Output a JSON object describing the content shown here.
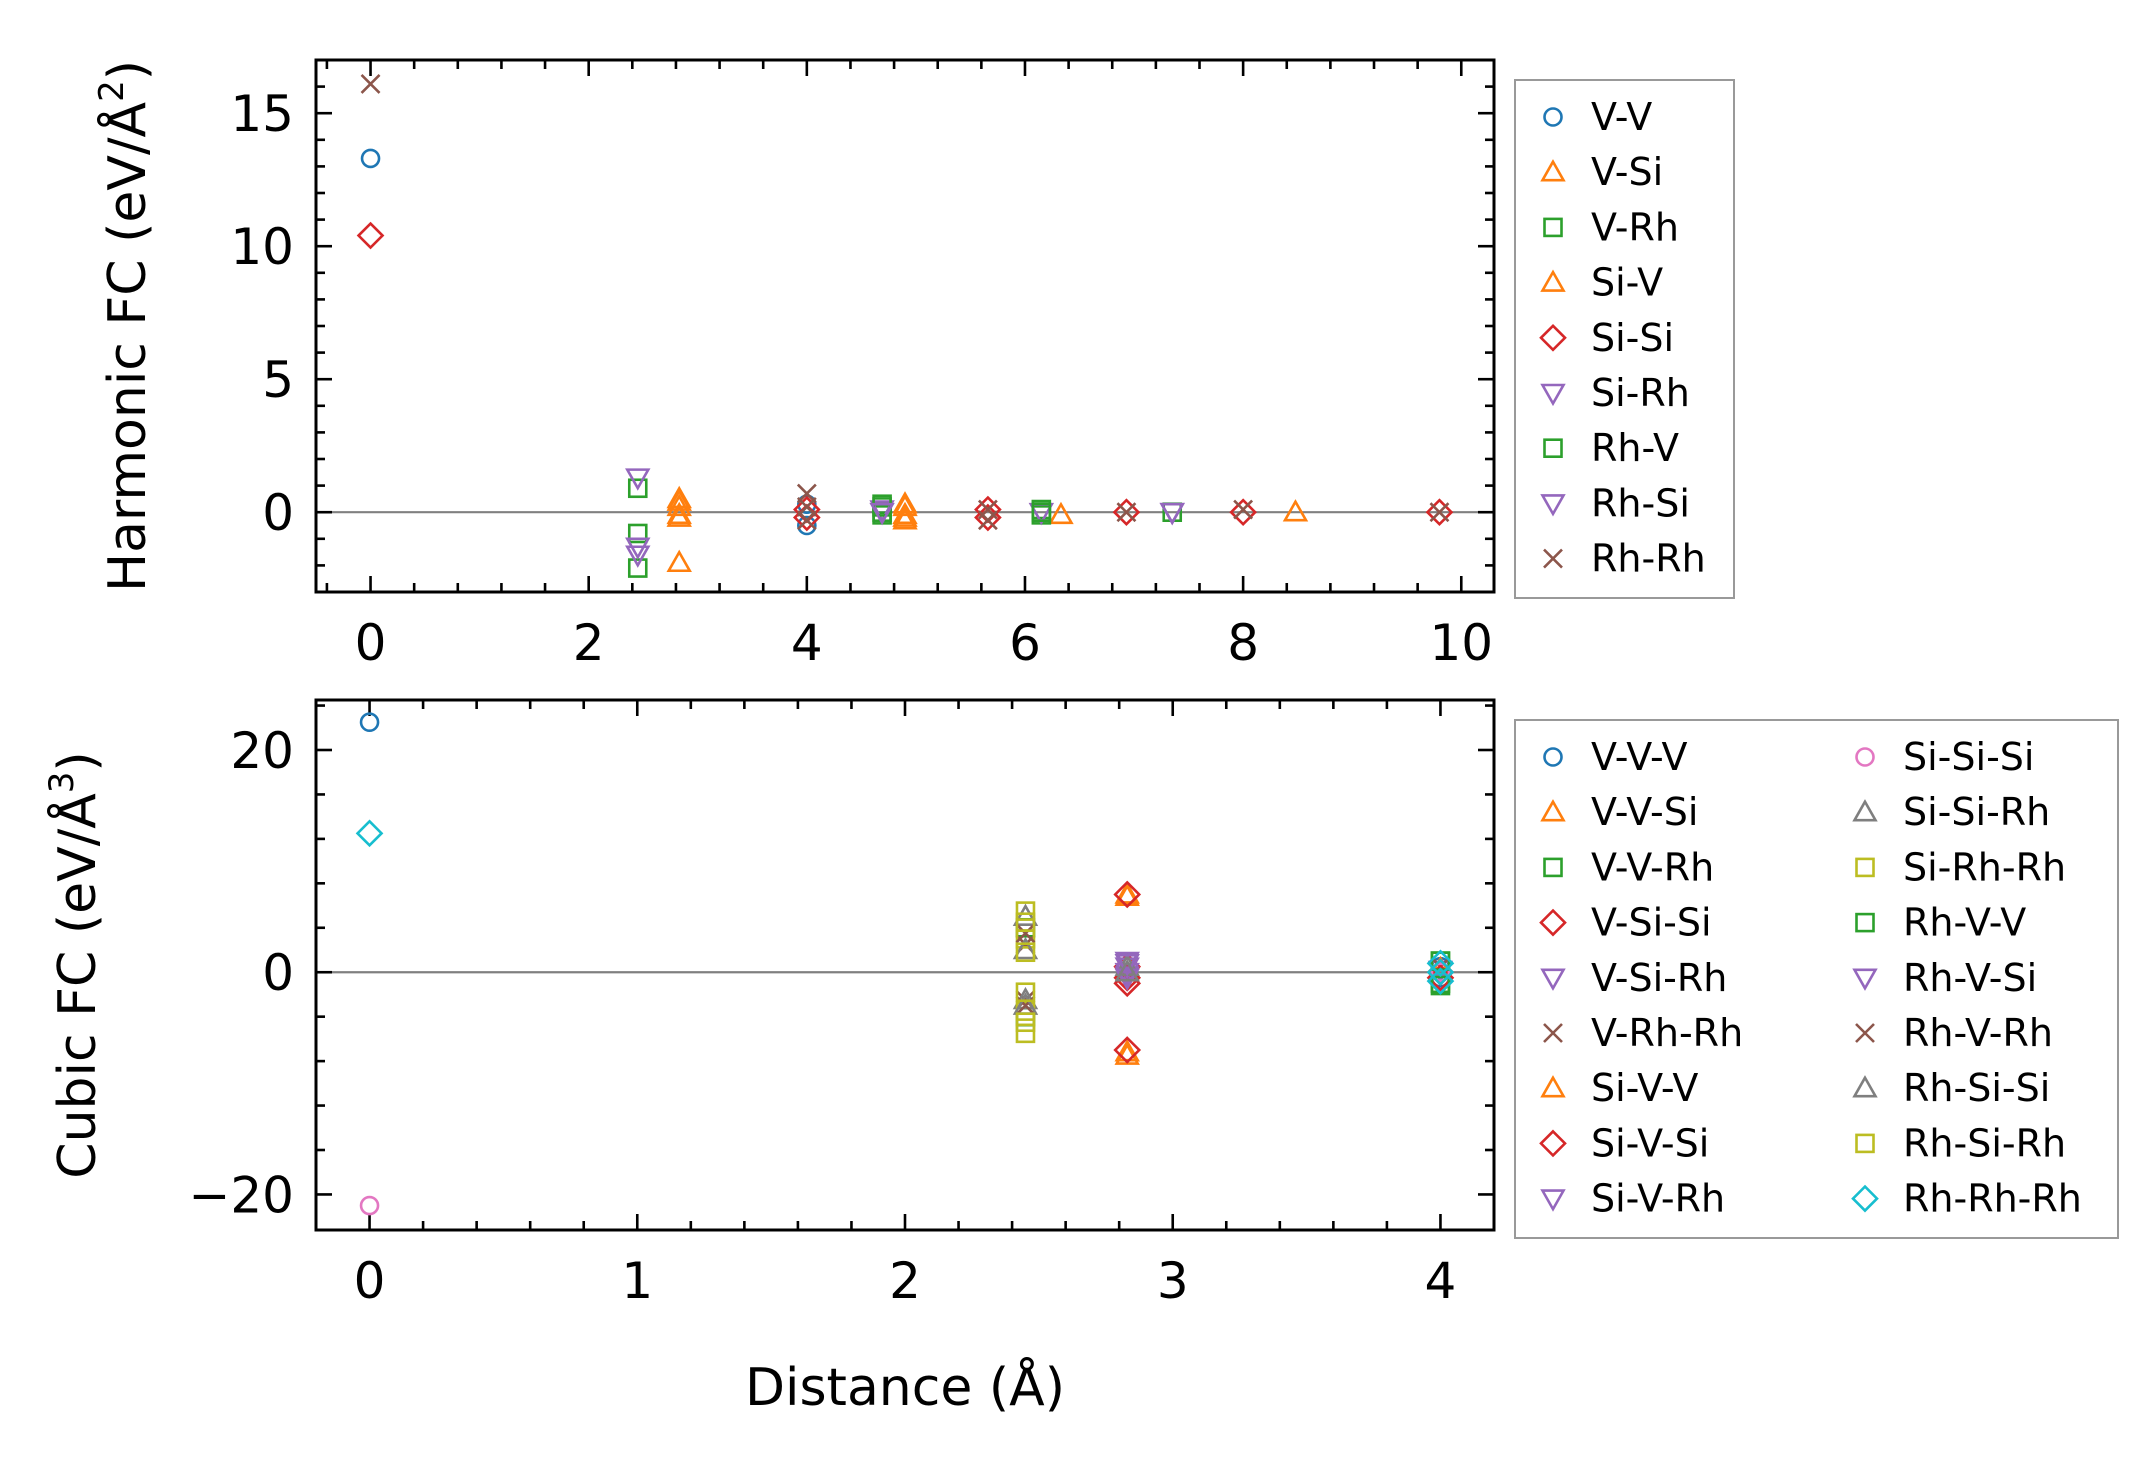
{
  "chart_data": [
    {
      "type": "scatter",
      "ylabel_base": "Harmonic FC (eV/Å",
      "ylabel_sup": "2",
      "ylabel_close": ")",
      "xlim": [
        -0.5,
        10.3
      ],
      "ylim": [
        -3,
        17
      ],
      "xticks": [
        0,
        2,
        4,
        6,
        8,
        10
      ],
      "yticks": [
        0,
        5,
        10,
        15
      ],
      "zero_line": true,
      "legend": {
        "placement": "outside-right",
        "columns": 1
      },
      "series": [
        {
          "name": "V-V",
          "marker": "circle",
          "color": "#1f77b4",
          "points": [
            [
              0,
              13.3
            ],
            [
              4.0,
              -0.5
            ],
            [
              4.0,
              0.3
            ]
          ]
        },
        {
          "name": "V-Si",
          "marker": "triangle-up",
          "color": "#ff7f0e",
          "points": [
            [
              2.83,
              0.5
            ],
            [
              2.83,
              0.2
            ],
            [
              2.83,
              -0.2
            ],
            [
              2.83,
              -1.9
            ],
            [
              4.9,
              0.3
            ],
            [
              4.9,
              -0.1
            ],
            [
              4.9,
              -0.3
            ],
            [
              6.33,
              -0.1
            ],
            [
              8.48,
              0.0
            ]
          ]
        },
        {
          "name": "V-Rh",
          "marker": "square",
          "color": "#2ca02c",
          "points": [
            [
              2.45,
              0.9
            ],
            [
              2.45,
              -0.8
            ],
            [
              2.45,
              -2.1
            ],
            [
              4.69,
              0.3
            ],
            [
              4.69,
              0.0
            ],
            [
              4.69,
              -0.1
            ],
            [
              6.15,
              0.1
            ],
            [
              6.15,
              -0.1
            ],
            [
              7.35,
              0.0
            ]
          ]
        },
        {
          "name": "Si-V",
          "marker": "triangle-up",
          "color": "#ff7f0e",
          "points": [
            [
              2.83,
              0.4
            ],
            [
              2.83,
              -0.1
            ],
            [
              4.9,
              0.2
            ],
            [
              4.9,
              -0.2
            ]
          ]
        },
        {
          "name": "Si-Si",
          "marker": "diamond",
          "color": "#d62728",
          "points": [
            [
              0,
              10.4
            ],
            [
              4.0,
              0.1
            ],
            [
              4.0,
              -0.2
            ],
            [
              5.66,
              0.1
            ],
            [
              5.66,
              -0.2
            ],
            [
              6.93,
              0.0
            ],
            [
              8.0,
              0.0
            ],
            [
              9.8,
              0.0
            ]
          ]
        },
        {
          "name": "Si-Rh",
          "marker": "triangle-down",
          "color": "#9467bd",
          "points": [
            [
              2.45,
              1.3
            ],
            [
              2.45,
              -1.3
            ],
            [
              4.69,
              0.1
            ],
            [
              6.15,
              0.0
            ],
            [
              7.35,
              0.0
            ]
          ]
        },
        {
          "name": "Rh-V",
          "marker": "square",
          "color": "#2ca02c",
          "points": [
            [
              4.69,
              0.2
            ],
            [
              6.15,
              0.0
            ]
          ]
        },
        {
          "name": "Rh-Si",
          "marker": "triangle-down",
          "color": "#9467bd",
          "points": [
            [
              2.45,
              -1.6
            ],
            [
              4.69,
              0.0
            ],
            [
              7.35,
              0.0
            ]
          ]
        },
        {
          "name": "Rh-Rh",
          "marker": "x",
          "color": "#8c564b",
          "points": [
            [
              0,
              16.1
            ],
            [
              4.0,
              0.7
            ],
            [
              4.0,
              0.2
            ],
            [
              4.0,
              -0.3
            ],
            [
              5.66,
              0.1
            ],
            [
              5.66,
              -0.3
            ],
            [
              6.93,
              0.0
            ],
            [
              8.0,
              0.1
            ],
            [
              9.8,
              0.0
            ]
          ]
        }
      ]
    },
    {
      "type": "scatter",
      "xlabel": "Distance (Å)",
      "ylabel_base": "Cubic FC (eV/Å",
      "ylabel_sup": "3",
      "ylabel_close": ")",
      "xlim": [
        -0.2,
        4.2
      ],
      "ylim": [
        -23.2,
        24.5
      ],
      "xticks": [
        0,
        1,
        2,
        3,
        4
      ],
      "yticks": [
        -20,
        0,
        20
      ],
      "zero_line": true,
      "legend": {
        "placement": "outside-right",
        "columns": 2
      },
      "series": [
        {
          "name": "V-V-V",
          "marker": "circle",
          "color": "#1f77b4",
          "points": [
            [
              0,
              22.5
            ],
            [
              4.0,
              0.5
            ],
            [
              4.0,
              -0.5
            ]
          ]
        },
        {
          "name": "V-V-Si",
          "marker": "triangle-up",
          "color": "#ff7f0e",
          "points": [
            [
              2.83,
              7.0
            ],
            [
              2.83,
              -7.5
            ],
            [
              4.0,
              0.3
            ]
          ]
        },
        {
          "name": "V-V-Rh",
          "marker": "square",
          "color": "#2ca02c",
          "points": [
            [
              2.45,
              4.0
            ],
            [
              2.45,
              -4.0
            ],
            [
              4.0,
              -1.0
            ],
            [
              4.0,
              1.0
            ]
          ]
        },
        {
          "name": "V-Si-Si",
          "marker": "diamond",
          "color": "#d62728",
          "points": [
            [
              2.83,
              0.5
            ],
            [
              2.83,
              -0.5
            ],
            [
              4.0,
              0.0
            ]
          ]
        },
        {
          "name": "V-Si-Rh",
          "marker": "triangle-down",
          "color": "#9467bd",
          "points": [
            [
              2.83,
              1.0
            ],
            [
              2.83,
              0.0
            ],
            [
              4.0,
              0.2
            ]
          ]
        },
        {
          "name": "V-Rh-Rh",
          "marker": "x",
          "color": "#8c564b",
          "points": [
            [
              2.45,
              2.5
            ],
            [
              2.45,
              -2.5
            ],
            [
              4.0,
              0.5
            ]
          ]
        },
        {
          "name": "Si-V-V",
          "marker": "triangle-up",
          "color": "#ff7f0e",
          "points": [
            [
              2.83,
              6.8
            ],
            [
              2.83,
              -7.2
            ]
          ]
        },
        {
          "name": "Si-V-Si",
          "marker": "diamond",
          "color": "#d62728",
          "points": [
            [
              2.83,
              7.0
            ],
            [
              2.83,
              -7.0
            ],
            [
              2.83,
              -1.0
            ],
            [
              4.0,
              -0.5
            ]
          ]
        },
        {
          "name": "Si-V-Rh",
          "marker": "triangle-down",
          "color": "#9467bd",
          "points": [
            [
              2.83,
              0.5
            ],
            [
              2.83,
              -0.3
            ]
          ]
        },
        {
          "name": "Si-Si-Si",
          "marker": "circle",
          "color": "#e377c2",
          "points": [
            [
              0,
              -21.0
            ],
            [
              4.0,
              0.0
            ]
          ]
        },
        {
          "name": "Si-Si-Rh",
          "marker": "triangle-up",
          "color": "#7f7f7f",
          "points": [
            [
              2.45,
              5.0
            ],
            [
              2.45,
              -2.5
            ],
            [
              2.83,
              0.5
            ]
          ]
        },
        {
          "name": "Si-Rh-Rh",
          "marker": "square",
          "color": "#bcbd22",
          "points": [
            [
              2.45,
              5.5
            ],
            [
              2.45,
              3.0
            ],
            [
              2.45,
              -3.5
            ],
            [
              2.45,
              -5.5
            ]
          ]
        },
        {
          "name": "Rh-V-V",
          "marker": "square",
          "color": "#2ca02c",
          "points": [
            [
              4.0,
              1.0
            ],
            [
              4.0,
              -1.2
            ]
          ]
        },
        {
          "name": "Rh-V-Si",
          "marker": "triangle-down",
          "color": "#9467bd",
          "points": [
            [
              2.83,
              0.8
            ],
            [
              2.83,
              -0.5
            ]
          ]
        },
        {
          "name": "Rh-V-Rh",
          "marker": "x",
          "color": "#8c564b",
          "points": [
            [
              2.45,
              3.5
            ],
            [
              2.45,
              -3.0
            ]
          ]
        },
        {
          "name": "Rh-Si-Si",
          "marker": "triangle-up",
          "color": "#7f7f7f",
          "points": [
            [
              2.45,
              2.0
            ],
            [
              2.45,
              -3.0
            ],
            [
              2.83,
              0.0
            ]
          ]
        },
        {
          "name": "Rh-Si-Rh",
          "marker": "square",
          "color": "#bcbd22",
          "points": [
            [
              2.45,
              4.5
            ],
            [
              2.45,
              -4.5
            ],
            [
              2.45,
              1.8
            ],
            [
              2.45,
              -1.8
            ]
          ]
        },
        {
          "name": "Rh-Rh-Rh",
          "marker": "diamond",
          "color": "#17becf",
          "points": [
            [
              0,
              12.5
            ],
            [
              4.0,
              0.8
            ],
            [
              4.0,
              0.0
            ],
            [
              4.0,
              -0.8
            ]
          ]
        }
      ]
    }
  ]
}
